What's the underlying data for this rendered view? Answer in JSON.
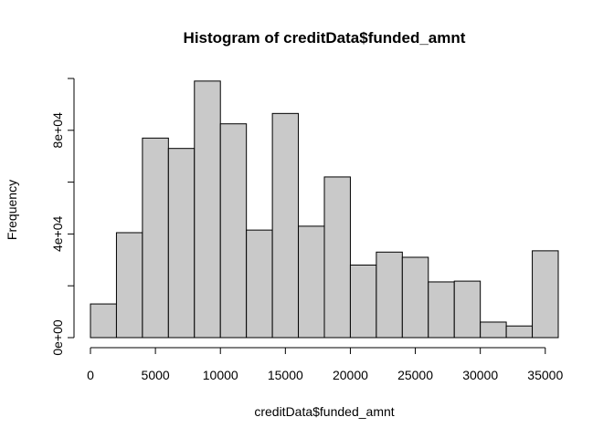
{
  "chart_data": {
    "type": "bar",
    "title": "Histogram of creditData$funded_amnt",
    "xlabel": "creditData$funded_amnt",
    "ylabel": "Frequency",
    "bins": [
      {
        "start": 0,
        "end": 2000,
        "count": 13000
      },
      {
        "start": 2000,
        "end": 4000,
        "count": 40500
      },
      {
        "start": 4000,
        "end": 6000,
        "count": 77000
      },
      {
        "start": 6000,
        "end": 8000,
        "count": 73000
      },
      {
        "start": 8000,
        "end": 10000,
        "count": 99000
      },
      {
        "start": 10000,
        "end": 12000,
        "count": 82500
      },
      {
        "start": 12000,
        "end": 14000,
        "count": 41500
      },
      {
        "start": 14000,
        "end": 16000,
        "count": 86500
      },
      {
        "start": 16000,
        "end": 18000,
        "count": 43000
      },
      {
        "start": 18000,
        "end": 20000,
        "count": 62000
      },
      {
        "start": 20000,
        "end": 22000,
        "count": 28000
      },
      {
        "start": 22000,
        "end": 24000,
        "count": 33000
      },
      {
        "start": 24000,
        "end": 26000,
        "count": 31000
      },
      {
        "start": 26000,
        "end": 28000,
        "count": 21500
      },
      {
        "start": 28000,
        "end": 30000,
        "count": 21800
      },
      {
        "start": 30000,
        "end": 32000,
        "count": 6000
      },
      {
        "start": 32000,
        "end": 34000,
        "count": 4500
      },
      {
        "start": 34000,
        "end": 36000,
        "count": 33500
      }
    ],
    "xlim": [
      0,
      36000
    ],
    "ylim": [
      0,
      100000
    ],
    "x_ticks": [
      0,
      5000,
      10000,
      15000,
      20000,
      25000,
      30000,
      35000
    ],
    "x_tick_labels": [
      "0",
      "5000",
      "10000",
      "15000",
      "20000",
      "25000",
      "30000",
      "35000"
    ],
    "y_ticks": [
      0,
      20000,
      40000,
      60000,
      80000,
      100000
    ],
    "y_tick_labels": [
      "0e+00",
      "",
      "4e+04",
      "",
      "8e+04",
      ""
    ],
    "grid": false,
    "bar_color": "#c9c9c9",
    "edge_color": "#000000"
  }
}
